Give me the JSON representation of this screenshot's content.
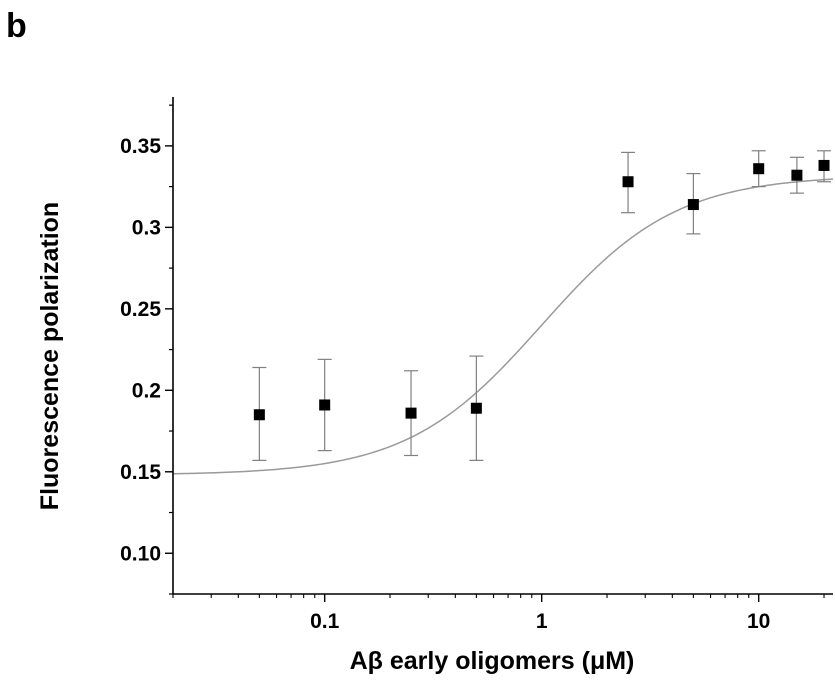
{
  "panel_label": "b",
  "chart_data": {
    "type": "scatter",
    "title": "",
    "xlabel": "Aβ early oligomers (μM)",
    "ylabel": "Fluorescence polarization",
    "xscale": "log",
    "xlim": [
      0.02,
      22
    ],
    "ylim": [
      0.075,
      0.38
    ],
    "grid": false,
    "legend": "none",
    "x_ticks": [
      {
        "value": 0.1,
        "label": "0.1"
      },
      {
        "value": 1,
        "label": "1"
      },
      {
        "value": 10,
        "label": "10"
      }
    ],
    "y_ticks": [
      {
        "value": 0.1,
        "label": "0.10"
      },
      {
        "value": 0.15,
        "label": "0.15"
      },
      {
        "value": 0.2,
        "label": "0.2"
      },
      {
        "value": 0.25,
        "label": "0.25"
      },
      {
        "value": 0.3,
        "label": "0.3"
      },
      {
        "value": 0.35,
        "label": "0.35"
      }
    ],
    "points": [
      {
        "x": 0.05,
        "y": 0.185,
        "err_low": 0.157,
        "err_high": 0.214
      },
      {
        "x": 0.1,
        "y": 0.191,
        "err_low": 0.163,
        "err_high": 0.219
      },
      {
        "x": 0.25,
        "y": 0.186,
        "err_low": 0.16,
        "err_high": 0.212
      },
      {
        "x": 0.5,
        "y": 0.189,
        "err_low": 0.157,
        "err_high": 0.221
      },
      {
        "x": 2.5,
        "y": 0.328,
        "err_low": 0.309,
        "err_high": 0.346
      },
      {
        "x": 5,
        "y": 0.314,
        "err_low": 0.296,
        "err_high": 0.333
      },
      {
        "x": 10,
        "y": 0.336,
        "err_low": 0.325,
        "err_high": 0.347
      },
      {
        "x": 15,
        "y": 0.332,
        "err_low": 0.321,
        "err_high": 0.343
      },
      {
        "x": 20,
        "y": 0.338,
        "err_low": 0.328,
        "err_high": 0.347
      }
    ],
    "fit_curve": {
      "type": "sigmoid",
      "bottom": 0.148,
      "top": 0.332,
      "ec50": 1.0,
      "hill": 1.4
    },
    "colors": {
      "marker": "#000000",
      "errorbar": "#808080",
      "fit": "#9a9a9a",
      "axis": "#000000"
    }
  }
}
